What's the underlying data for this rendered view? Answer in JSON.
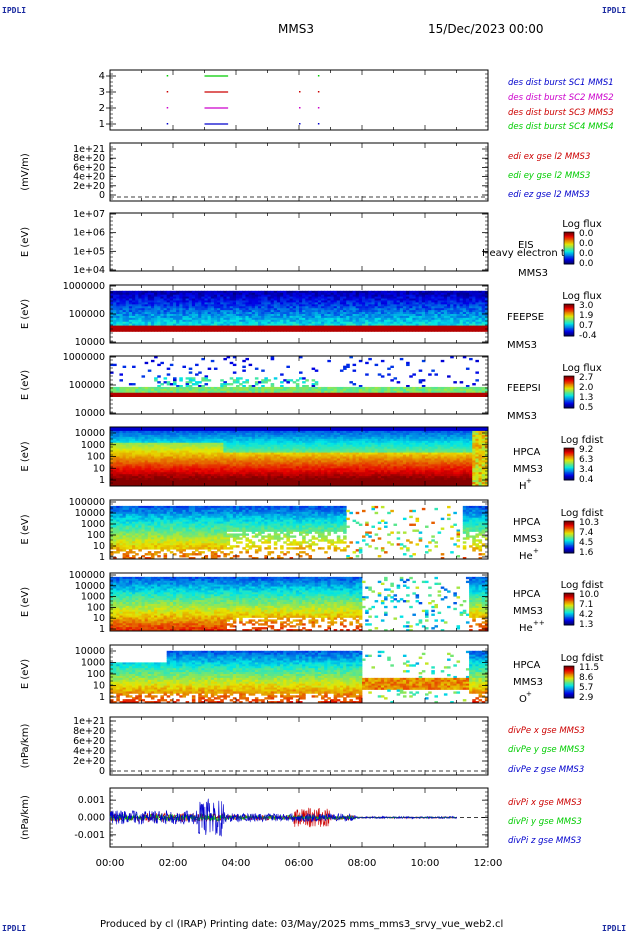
{
  "header": {
    "corner_tl": "IPDLI",
    "corner_tr": "IPDLI",
    "corner_bl": "IPDLI",
    "corner_br": "IPDLI",
    "title_left": "MMS3",
    "title_right": "15/Dec/2023 00:00"
  },
  "footer": {
    "text": "Produced by cl (IRAP)    Printing date: 03/May/2025    mms_mms3_srvy_vue_web2.cl"
  },
  "colors": {
    "blue": "#0000cc",
    "magenta": "#cc00cc",
    "red": "#cc0000",
    "green": "#00cc00"
  },
  "chart_data": [
    {
      "id": "burst",
      "type": "scatter",
      "xlim": [
        "00:00",
        "12:00"
      ],
      "ylim": [
        0.5,
        4.5
      ],
      "yticks": [
        "4",
        "3",
        "2",
        "1"
      ],
      "legend": [
        {
          "label": "des dist burst SC1 MMS1",
          "color": "#0000cc"
        },
        {
          "label": "des dist burst SC2 MMS2",
          "color": "#cc00cc"
        },
        {
          "label": "des dist burst SC3 MMS3",
          "color": "#cc0000"
        },
        {
          "label": "des dist burst SC4 MMS4",
          "color": "#00cc00"
        }
      ],
      "segments": [
        {
          "sc": 4,
          "start": "03:00",
          "end": "03:45"
        },
        {
          "sc": 3,
          "start": "03:00",
          "end": "03:45"
        },
        {
          "sc": 2,
          "start": "03:00",
          "end": "03:45"
        },
        {
          "sc": 1,
          "start": "03:00",
          "end": "03:45"
        }
      ]
    },
    {
      "id": "edi",
      "type": "line",
      "ylabel": "(mV/m)",
      "yticks": [
        "1e+21",
        "8e+20",
        "6e+20",
        "4e+20",
        "2e+20",
        "0"
      ],
      "legend": [
        {
          "label": "edi ex gse l2 MMS3",
          "color": "#cc0000"
        },
        {
          "label": "edi ey gse l2 MMS3",
          "color": "#00cc00"
        },
        {
          "label": "edi ez gse l2 MMS3",
          "color": "#0000cc"
        }
      ]
    },
    {
      "id": "eis",
      "type": "heatmap",
      "ylabel": "E (eV)",
      "yticks": [
        "1e+07",
        "1e+06",
        "1e+05",
        "1e+04"
      ],
      "side_labels": [
        "EIS",
        "MMS3"
      ],
      "overlap_text": "Heavy electron to",
      "colorbar_title": "Log flux",
      "colorbar_ticks": [
        "0.0",
        "0.0",
        "0.0",
        "0.0"
      ]
    },
    {
      "id": "feepse",
      "type": "heatmap",
      "ylabel": "E (eV)",
      "yticks": [
        "1000000",
        "100000",
        "10000"
      ],
      "side_labels": [
        "FEEPSE",
        "MMS3"
      ],
      "colorbar_title": "Log flux",
      "colorbar_ticks": [
        "3.0",
        "1.9",
        "0.7",
        "-0.4"
      ]
    },
    {
      "id": "feepsi",
      "type": "heatmap",
      "ylabel": "E (eV)",
      "yticks": [
        "1000000",
        "100000",
        "10000"
      ],
      "side_labels": [
        "FEEPSI",
        "MMS3"
      ],
      "colorbar_title": "Log flux",
      "colorbar_ticks": [
        "2.7",
        "2.0",
        "1.3",
        "0.5"
      ]
    },
    {
      "id": "hpca_h",
      "type": "heatmap",
      "ylabel": "E (eV)",
      "yticks": [
        "10000",
        "1000",
        "100",
        "10",
        "1"
      ],
      "side_labels": [
        "HPCA",
        "MMS3",
        "H",
        "+"
      ],
      "colorbar_title": "Log fdist",
      "colorbar_ticks": [
        "9.2",
        "6.3",
        "3.4",
        "0.4"
      ]
    },
    {
      "id": "hpca_he",
      "type": "heatmap",
      "ylabel": "E (eV)",
      "yticks": [
        "100000",
        "10000",
        "1000",
        "100",
        "10",
        "1"
      ],
      "side_labels": [
        "HPCA",
        "MMS3",
        "He",
        "+"
      ],
      "colorbar_title": "Log fdist",
      "colorbar_ticks": [
        "10.3",
        "7.4",
        "4.5",
        "1.6"
      ]
    },
    {
      "id": "hpca_hepp",
      "type": "heatmap",
      "ylabel": "E (eV)",
      "yticks": [
        "100000",
        "10000",
        "1000",
        "100",
        "10",
        "1"
      ],
      "side_labels": [
        "HPCA",
        "MMS3",
        "He",
        "++"
      ],
      "colorbar_title": "Log fdist",
      "colorbar_ticks": [
        "10.0",
        "7.1",
        "4.2",
        "1.3"
      ]
    },
    {
      "id": "hpca_o",
      "type": "heatmap",
      "ylabel": "E (eV)",
      "yticks": [
        "10000",
        "1000",
        "100",
        "10",
        "1"
      ],
      "side_labels": [
        "HPCA",
        "MMS3",
        "O",
        "+"
      ],
      "colorbar_title": "Log fdist",
      "colorbar_ticks": [
        "11.5",
        "8.6",
        "5.7",
        "2.9"
      ]
    },
    {
      "id": "divpe",
      "type": "line",
      "ylabel": "(nPa/km)",
      "yticks": [
        "1e+21",
        "8e+20",
        "6e+20",
        "4e+20",
        "2e+20",
        "0"
      ],
      "legend": [
        {
          "label": "divPe x gse MMS3",
          "color": "#cc0000"
        },
        {
          "label": "divPe y gse MMS3",
          "color": "#00cc00"
        },
        {
          "label": "divPe z gse MMS3",
          "color": "#0000cc"
        }
      ]
    },
    {
      "id": "divpi",
      "type": "line",
      "ylabel": "(nPa/km)",
      "yticks": [
        "0.001",
        "0.000",
        "-0.001"
      ],
      "ylim": [
        -0.0017,
        0.0017
      ],
      "legend": [
        {
          "label": "divPi x gse MMS3",
          "color": "#cc0000"
        },
        {
          "label": "divPi y gse MMS3",
          "color": "#00cc00"
        },
        {
          "label": "divPi z gse MMS3",
          "color": "#0000cc"
        }
      ],
      "xticks": [
        "00:00",
        "02:00",
        "04:00",
        "06:00",
        "08:00",
        "10:00",
        "12:00"
      ]
    }
  ]
}
